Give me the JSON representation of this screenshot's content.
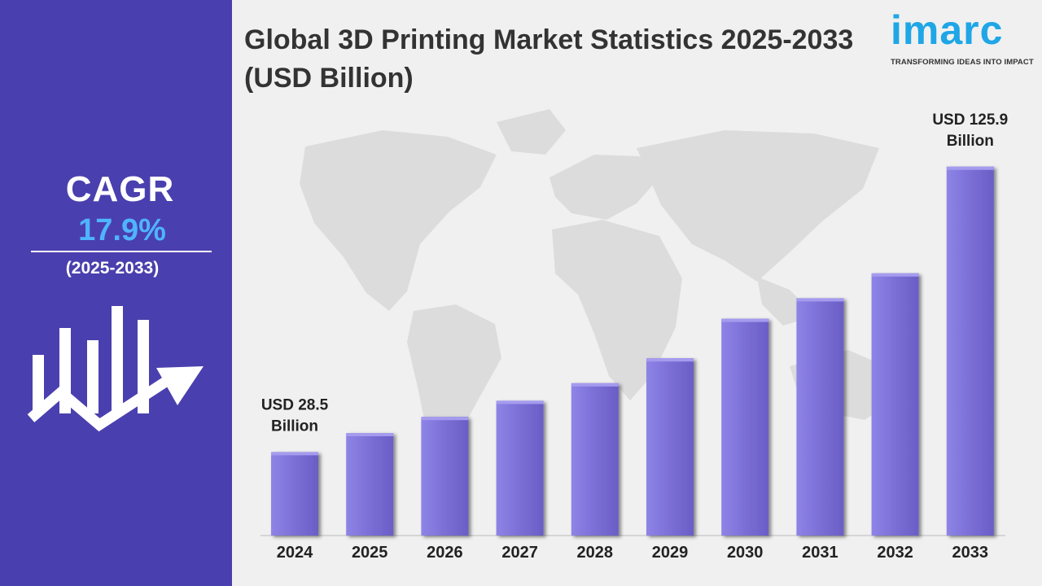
{
  "sidebar": {
    "cagr_label": "CAGR",
    "cagr_value": "17.9%",
    "cagr_period": "(2025-2033)",
    "icon": "bar-chart-growth-arrow-icon"
  },
  "header": {
    "title": "Global 3D Printing Market Statistics 2025-2033 (USD Billion)"
  },
  "logo": {
    "text": "imarc",
    "tagline": "TRANSFORMING IDEAS INTO IMPACT"
  },
  "background_image": "world-map",
  "colors": {
    "panel": "#4a3fae",
    "cagr_value": "#4fb4ff",
    "bar": "#7b6fd6",
    "logo": "#1fa6e6"
  },
  "chart_data": {
    "type": "bar",
    "title": "Global 3D Printing Market Statistics 2025-2033 (USD Billion)",
    "categories": [
      "2024",
      "2025",
      "2026",
      "2027",
      "2028",
      "2029",
      "2030",
      "2031",
      "2032",
      "2033"
    ],
    "values": [
      28.5,
      35.0,
      40.5,
      46.0,
      52.0,
      60.5,
      74.0,
      81.0,
      89.5,
      125.9
    ],
    "ylim": [
      0,
      140
    ],
    "grid": false,
    "legend": "none",
    "annotations": [
      {
        "category": "2024",
        "line1": "USD 28.5",
        "line2": "Billion"
      },
      {
        "category": "2033",
        "line1": "USD 125.9",
        "line2": "Billion"
      }
    ]
  }
}
